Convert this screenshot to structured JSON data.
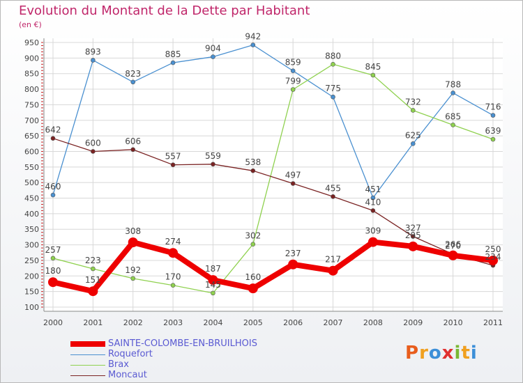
{
  "title": "Evolution du Montant de la Dette par Habitant",
  "subtitle": "(en €)",
  "brand": {
    "text": "Proxiti",
    "letters": [
      {
        "ch": "P",
        "color": "#e85d1c"
      },
      {
        "ch": "r",
        "color": "#f0a020"
      },
      {
        "ch": "o",
        "color": "#3c8fd8"
      },
      {
        "ch": "x",
        "color": "#e03030"
      },
      {
        "ch": "i",
        "color": "#79b833"
      },
      {
        "ch": "t",
        "color": "#f0a020"
      },
      {
        "ch": "i",
        "color": "#3c8fd8"
      }
    ]
  },
  "chart_data": {
    "type": "line",
    "title": "Evolution du Montant de la Dette par Habitant",
    "ylabel": "(en €)",
    "x": [
      "2000",
      "2001",
      "2002",
      "2003",
      "2004",
      "2005",
      "2006",
      "2007",
      "2008",
      "2009",
      "2010",
      "2011"
    ],
    "ylim": [
      100,
      950
    ],
    "yticks": [
      100,
      150,
      200,
      250,
      300,
      350,
      400,
      450,
      500,
      550,
      600,
      650,
      700,
      750,
      800,
      850,
      900,
      950
    ],
    "grid": true,
    "legend_position": "bottom-left",
    "series": [
      {
        "name": "SAINTE-COLOMBE-EN-BRUILHOIS",
        "color": "#ee0000",
        "thick": true,
        "values": [
          180,
          151,
          308,
          274,
          187,
          160,
          237,
          217,
          309,
          295,
          266,
          250
        ]
      },
      {
        "name": "Roquefort",
        "color": "#4a90d0",
        "thick": false,
        "values": [
          460,
          893,
          823,
          885,
          904,
          942,
          859,
          775,
          451,
          625,
          788,
          716
        ]
      },
      {
        "name": "Brax",
        "color": "#8fd14f",
        "thick": false,
        "values": [
          257,
          223,
          192,
          170,
          145,
          302,
          799,
          880,
          845,
          732,
          685,
          639
        ]
      },
      {
        "name": "Moncaut",
        "color": "#7a2323",
        "thick": false,
        "values": [
          642,
          600,
          606,
          557,
          559,
          538,
          497,
          455,
          410,
          327,
          270,
          234
        ]
      }
    ]
  }
}
